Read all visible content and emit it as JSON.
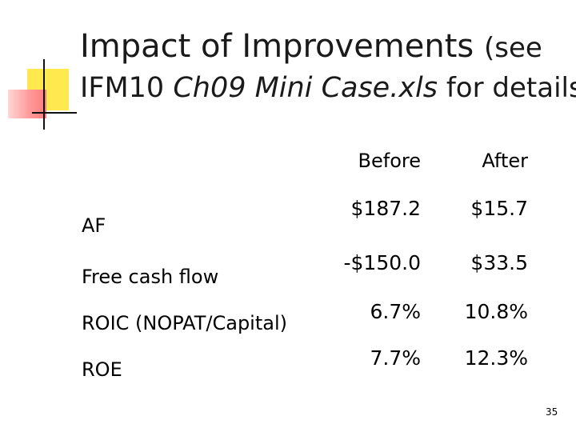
{
  "title": {
    "line1_main": "Impact of Improvements ",
    "line1_small": "(see",
    "line2_prefix": "IFM10 ",
    "line2_italic": "Ch09 Mini Case.xls",
    "line2_suffix": " for details)"
  },
  "table": {
    "headers": [
      "Before",
      "After"
    ],
    "rows": [
      {
        "label": "AF",
        "before": "$187.2",
        "after": "$15.7"
      },
      {
        "label": "Free cash flow",
        "before": "-$150.0",
        "after": "$33.5"
      },
      {
        "label": "ROIC (NOPAT/Capital)",
        "before": "6.7%",
        "after": "10.8%"
      },
      {
        "label": "ROE",
        "before": "7.7%",
        "after": "12.3%"
      }
    ]
  },
  "page_number": "35",
  "colors": {
    "ornament_yellow": "#ffe94f",
    "ornament_pink": "#ff7b7b"
  }
}
